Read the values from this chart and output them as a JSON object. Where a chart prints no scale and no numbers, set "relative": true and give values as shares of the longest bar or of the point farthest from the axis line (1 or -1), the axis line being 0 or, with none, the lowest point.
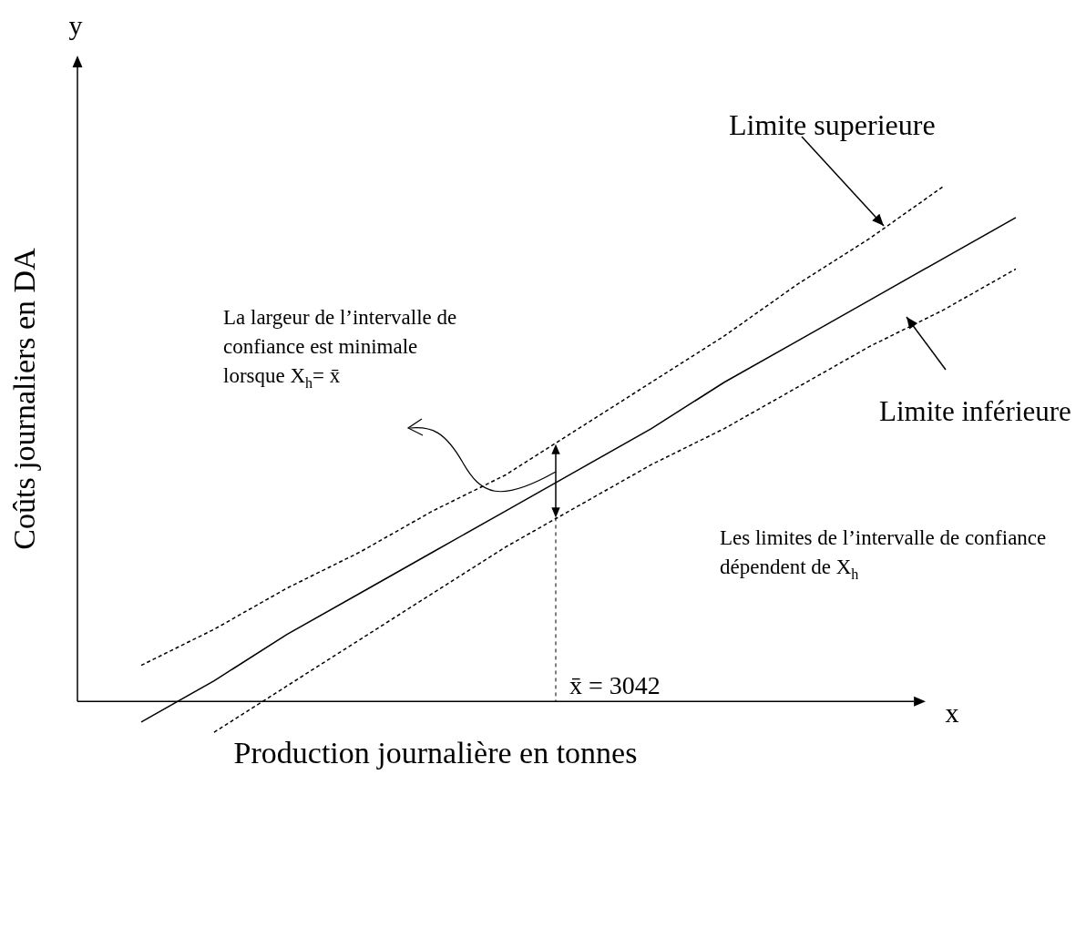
{
  "chart_data": {
    "type": "line",
    "relative": true,
    "xlabel": "Production journalière en tonnes",
    "ylabel": "Coûts journaliers en DA",
    "categories": [
      null,
      null,
      null,
      null,
      null,
      null,
      null,
      null,
      null,
      null,
      null,
      null,
      null
    ],
    "series": [
      {
        "color": "#000000",
        "line_style": "dashed",
        "values": [
          0.07,
          0.14,
          0.22,
          0.29,
          0.37,
          0.44,
          0.53,
          0.62,
          0.71,
          0.81,
          0.9,
          1,
          null
        ]
      },
      {
        "color": "#000000",
        "line_style": "solid",
        "values": [
          -0.04,
          0.04,
          0.13,
          0.21,
          0.29,
          0.37,
          0.45,
          0.53,
          0.62,
          0.7,
          0.78,
          0.86,
          0.94
        ]
      },
      {
        "color": "#000000",
        "line_style": "dashed",
        "values": [
          null,
          -0.06,
          0.03,
          0.12,
          0.21,
          0.3,
          0.38,
          0.46,
          0.53,
          0.61,
          0.69,
          0.76,
          0.84
        ]
      }
    ],
    "annotations": [
      "y",
      "x",
      "La largeur de l’intervalle de confiance est minimale lorsque X$_{h}$= x̄",
      "Les limites de l’intervalle de confiance dépendent de X$_{h}$",
      "x̄ = 3042",
      "Limite superieure",
      "Limite inférieure"
    ]
  }
}
